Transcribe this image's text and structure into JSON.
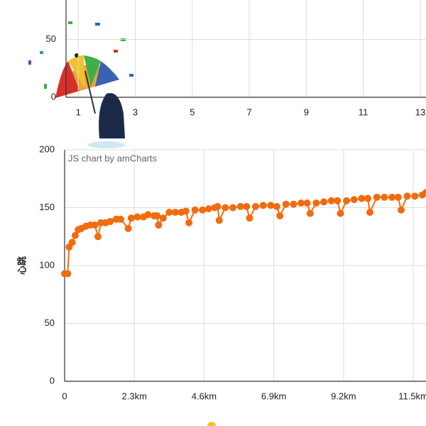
{
  "chart_data": [
    {
      "type": "line",
      "xlim": [
        0.57,
        13.2
      ],
      "xticks": [
        1,
        3,
        5,
        7,
        9,
        11,
        13
      ],
      "ylim": [
        0,
        84
      ],
      "yticks": [
        0,
        50
      ],
      "grid": true
    },
    {
      "type": "line",
      "watermark": "JS chart by amCharts",
      "y_label": "心跳",
      "xlim": [
        0,
        11.92
      ],
      "xticks": [
        0,
        {
          "value": 2.3,
          "label": "2.3km"
        },
        {
          "value": 4.6,
          "label": "4.6km"
        },
        {
          "value": 6.9,
          "label": "6.9km"
        },
        {
          "value": 9.2,
          "label": "9.2km"
        },
        {
          "value": 11.5,
          "label": "11.5km"
        }
      ],
      "ylim": [
        0,
        200
      ],
      "yticks": [
        0,
        50,
        100,
        150,
        200
      ],
      "grid": true,
      "series": [
        {
          "color": "#f26b0f",
          "x": [
            0,
            0.1,
            0.15,
            0.25,
            0.35,
            0.45,
            0.55,
            0.7,
            0.85,
            1.0,
            1.1,
            1.2,
            1.35,
            1.5,
            1.7,
            1.85,
            2.1,
            2.2,
            2.4,
            2.6,
            2.75,
            2.95,
            3.05,
            3.1,
            3.25,
            3.45,
            3.65,
            3.85,
            4.0,
            4.1,
            4.3,
            4.55,
            4.75,
            4.95,
            5.05,
            5.1,
            5.3,
            5.55,
            5.8,
            6.0,
            6.1,
            6.3,
            6.55,
            6.8,
            7.0,
            7.1,
            7.3,
            7.55,
            7.8,
            8.0,
            8.1,
            8.3,
            8.55,
            8.8,
            9.0,
            9.1,
            9.3,
            9.55,
            9.8,
            10.0,
            10.07,
            10.3,
            10.55,
            10.8,
            11.0,
            11.1,
            11.3,
            11.55,
            11.8,
            11.92
          ],
          "values": [
            93,
            93,
            116,
            120,
            126,
            131,
            132,
            134,
            135,
            135,
            125,
            137,
            137,
            138,
            140,
            140,
            132,
            141,
            142,
            142,
            144,
            143,
            143,
            135,
            141,
            146,
            146,
            146,
            147,
            137,
            148,
            148,
            149,
            150,
            151,
            139,
            150,
            150,
            151,
            151,
            141,
            151,
            152,
            152,
            151,
            143,
            153,
            153,
            154,
            154,
            145,
            154,
            155,
            156,
            156,
            145,
            156,
            157,
            158,
            158,
            146,
            159,
            159,
            159,
            159,
            148,
            160,
            160,
            161,
            163
          ]
        }
      ]
    }
  ]
}
